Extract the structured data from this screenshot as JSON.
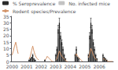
{
  "chart_data": {
    "type": "bar",
    "categories": [
      "2000",
      null,
      null,
      null,
      null,
      null,
      null,
      null,
      null,
      null,
      null,
      null,
      "2001",
      null,
      null,
      null,
      null,
      null,
      null,
      null,
      null,
      null,
      null,
      null,
      "2002",
      null,
      null,
      null,
      null,
      null,
      null,
      null,
      null,
      null,
      null,
      null,
      "2003",
      null,
      null,
      null,
      null,
      null,
      null,
      null,
      null,
      null,
      null,
      null,
      "2004",
      null,
      null,
      null,
      null,
      null,
      null,
      null,
      null,
      null,
      null,
      null,
      "2005",
      null,
      null,
      null,
      null,
      null,
      null,
      null,
      null,
      null,
      null,
      null,
      "2006",
      null,
      null,
      null,
      null,
      null,
      null,
      null,
      null,
      null,
      null,
      null
    ],
    "series": [
      {
        "name": "% Seroprevalence",
        "type": "bar",
        "color": "#2a2a2a",
        "values": [
          0,
          0,
          0,
          0,
          0,
          0,
          null,
          null,
          null,
          null,
          null,
          null,
          null,
          null,
          1,
          2,
          3,
          5,
          2,
          1,
          0,
          0,
          0,
          null,
          null,
          null,
          null,
          1,
          0,
          0,
          0,
          0,
          0,
          0,
          0,
          null,
          5,
          10,
          25,
          30,
          20,
          15,
          10,
          5,
          2,
          0,
          0,
          null,
          null,
          null,
          null,
          null,
          5,
          10,
          3,
          2,
          0,
          0,
          0,
          null,
          null,
          null,
          null,
          5,
          20,
          30,
          25,
          15,
          10,
          5,
          2,
          null,
          null,
          null,
          null,
          5,
          3,
          2,
          1,
          0,
          0,
          0,
          0,
          0
        ],
        "errors": [
          null,
          null,
          null,
          null,
          null,
          null,
          null,
          null,
          null,
          null,
          null,
          null,
          null,
          null,
          0.12,
          0.24,
          0.36,
          0.6,
          0.24,
          0.12,
          null,
          null,
          null,
          null,
          null,
          null,
          null,
          0.12,
          null,
          null,
          null,
          null,
          null,
          null,
          null,
          null,
          0.6,
          1.2,
          3,
          3.6,
          2.4,
          1.8,
          1.2,
          0.6,
          0.24,
          null,
          null,
          null,
          null,
          null,
          null,
          null,
          0.6,
          1.2,
          0.36,
          0.24,
          null,
          null,
          null,
          null,
          null,
          null,
          null,
          0.6,
          2.4,
          3.6,
          3,
          1.8,
          1.2,
          0.6,
          0.24,
          null,
          null,
          null,
          null,
          0.6,
          0.36,
          0.24,
          0.12,
          null,
          null,
          null,
          null,
          null
        ]
      },
      {
        "name": "No. infected mice",
        "type": "bar",
        "color": "#aaaaaa",
        "values": [
          0,
          0,
          0,
          0,
          0,
          0,
          null,
          null,
          null,
          null,
          null,
          null,
          null,
          null,
          1,
          1,
          2,
          4,
          1,
          1,
          0,
          0,
          0,
          null,
          null,
          null,
          null,
          1,
          0,
          0,
          0,
          0,
          0,
          0,
          0,
          null,
          3,
          7,
          18,
          22,
          15,
          10,
          7,
          3,
          1,
          0,
          0,
          null,
          null,
          null,
          null,
          null,
          3,
          7,
          2,
          1,
          0,
          0,
          0,
          null,
          null,
          null,
          null,
          3,
          14,
          22,
          18,
          10,
          7,
          3,
          1,
          null,
          null,
          null,
          null,
          3,
          2,
          1,
          1,
          0,
          0,
          0,
          0,
          0
        ]
      },
      {
        "name": "Rodent species/Prevalence",
        "type": "line",
        "color": "#d4956a",
        "values": [
          5,
          8,
          12,
          15,
          10,
          6,
          null,
          null,
          null,
          null,
          null,
          null,
          null,
          null,
          2,
          4,
          8,
          12,
          8,
          5,
          3,
          2,
          1,
          null,
          null,
          null,
          null,
          1,
          2,
          4,
          3,
          2,
          1,
          0,
          0,
          null,
          1,
          2,
          5,
          8,
          6,
          4,
          3,
          2,
          1,
          0,
          0,
          null,
          null,
          null,
          null,
          null,
          4,
          6,
          4,
          3,
          2,
          1,
          0,
          null,
          null,
          null,
          null,
          3,
          6,
          10,
          8,
          5,
          3,
          2,
          1,
          null,
          null,
          null,
          null,
          2,
          2,
          1,
          1,
          0,
          0,
          0,
          0,
          0
        ]
      }
    ],
    "ylim": [
      0,
      35
    ],
    "yticks": [
      0,
      5,
      10,
      15,
      20,
      25,
      30,
      35
    ],
    "grid": false,
    "legend": "upper left"
  }
}
